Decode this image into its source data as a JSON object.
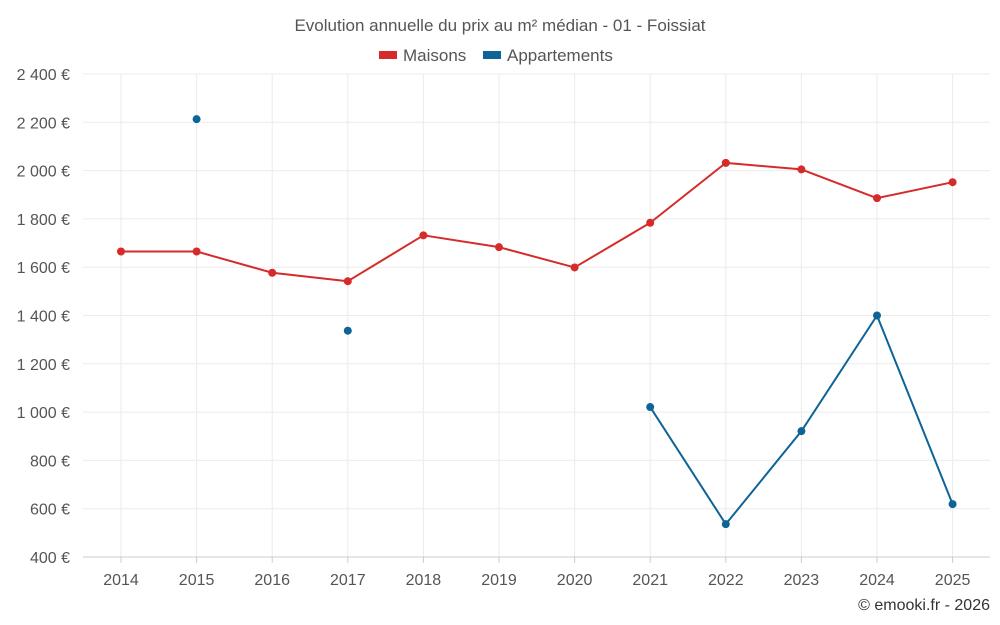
{
  "chart_data": {
    "type": "line",
    "title": "Evolution annuelle du prix au m² médian - 01 - Foissiat",
    "categories": [
      "2014",
      "2015",
      "2016",
      "2017",
      "2018",
      "2019",
      "2020",
      "2021",
      "2022",
      "2023",
      "2024",
      "2025"
    ],
    "ylim": [
      400,
      2400
    ],
    "yticks": [
      400,
      600,
      800,
      1000,
      1200,
      1400,
      1600,
      1800,
      2000,
      2200,
      2400
    ],
    "ytick_labels": [
      "400 €",
      "600 €",
      "800 €",
      "1 000 €",
      "1 200 €",
      "1 400 €",
      "1 600 €",
      "1 800 €",
      "2 000 €",
      "2 200 €",
      "2 400 €"
    ],
    "grid": true,
    "legend_position": "top-center",
    "series": [
      {
        "name": "Maisons",
        "color": "#d62b2b",
        "values": [
          1665,
          1665,
          1577,
          1542,
          1732,
          1683,
          1599,
          1784,
          2032,
          2005,
          1886,
          1952
        ]
      },
      {
        "name": "Appartements",
        "color": "#0e6496",
        "values": [
          null,
          2213,
          null,
          1337,
          null,
          null,
          null,
          1021,
          536,
          921,
          1400,
          619
        ]
      }
    ]
  },
  "credit": "© emooki.fr - 2026"
}
